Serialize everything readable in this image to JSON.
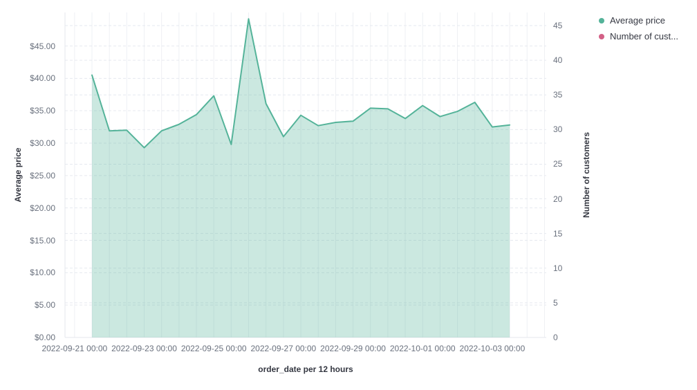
{
  "colors": {
    "series_green": "#54b399",
    "series_green_fill": "rgba(84,179,153,0.30)",
    "series_pink": "#d36086",
    "tick_text": "#69707d",
    "title_text": "#343741",
    "vgrid": "#eef0f4",
    "hgrid": "#e6e9ef",
    "axis_line": "#e4e7ec",
    "background": "#ffffff"
  },
  "legend": {
    "items": [
      {
        "label": "Average price",
        "color": "#54b399"
      },
      {
        "label": "Number of cust...",
        "color": "#d36086"
      }
    ]
  },
  "chart_data": {
    "type": "area",
    "title": "",
    "x": [
      "2022-09-21 12:00",
      "2022-09-22 00:00",
      "2022-09-22 12:00",
      "2022-09-23 00:00",
      "2022-09-23 12:00",
      "2022-09-24 00:00",
      "2022-09-24 12:00",
      "2022-09-25 00:00",
      "2022-09-25 12:00",
      "2022-09-26 00:00",
      "2022-09-26 12:00",
      "2022-09-27 00:00",
      "2022-09-27 12:00",
      "2022-09-28 00:00",
      "2022-09-28 12:00",
      "2022-09-29 00:00",
      "2022-09-29 12:00",
      "2022-09-30 00:00",
      "2022-09-30 12:00",
      "2022-10-01 00:00",
      "2022-10-01 12:00",
      "2022-10-02 00:00",
      "2022-10-02 12:00",
      "2022-10-03 00:00",
      "2022-10-03 12:00"
    ],
    "series": [
      {
        "name": "Average price",
        "axis": "left",
        "color": "#54b399",
        "values": [
          40.5,
          31.9,
          32.0,
          29.3,
          31.9,
          32.9,
          34.4,
          37.3,
          29.8,
          49.2,
          36.1,
          31.0,
          34.3,
          32.7,
          33.2,
          33.4,
          35.4,
          35.3,
          33.8,
          35.8,
          34.1,
          34.9,
          36.3,
          32.5,
          32.8
        ]
      }
    ],
    "legend_position": "top-right",
    "grid": true,
    "axes": {
      "left": {
        "title": "Average price",
        "tick_labels": [
          "$0.00",
          "$5.00",
          "$10.00",
          "$15.00",
          "$20.00",
          "$25.00",
          "$30.00",
          "$35.00",
          "$40.00",
          "$45.00"
        ],
        "tick_values": [
          0,
          5,
          10,
          15,
          20,
          25,
          30,
          35,
          40,
          45
        ],
        "range": [
          0,
          50
        ]
      },
      "right": {
        "title": "Number of customers",
        "tick_labels": [
          "0",
          "5",
          "10",
          "15",
          "20",
          "25",
          "30",
          "35",
          "40",
          "45"
        ],
        "tick_values": [
          0,
          5,
          10,
          15,
          20,
          25,
          30,
          35,
          40,
          45
        ],
        "range": [
          0,
          46.8
        ]
      },
      "x": {
        "title": "order_date per 12 hours",
        "tick_labels": [
          "2022-09-21 00:00",
          "2022-09-23 00:00",
          "2022-09-25 00:00",
          "2022-09-27 00:00",
          "2022-09-29 00:00",
          "2022-10-01 00:00",
          "2022-10-03 00:00"
        ]
      }
    }
  }
}
